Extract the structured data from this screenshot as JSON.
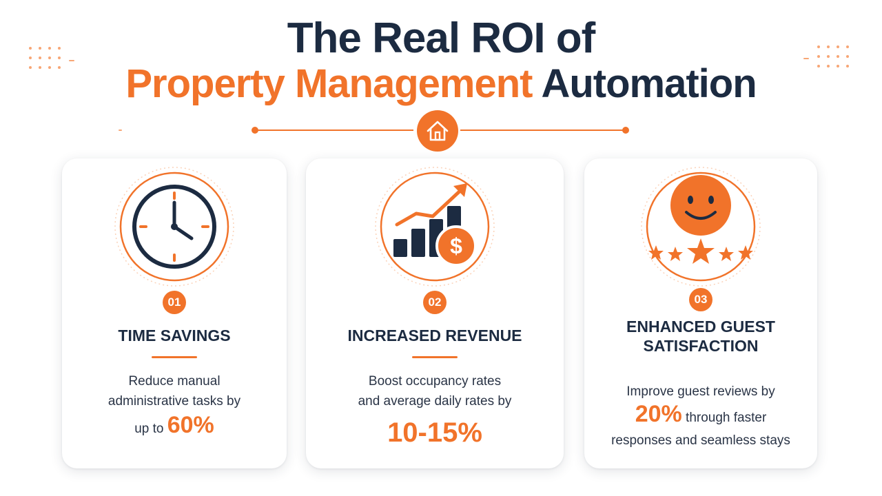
{
  "header": {
    "title_line1": "The Real ROI of",
    "title_line2_accent": "Property Management",
    "title_line2_dark": "Automation"
  },
  "colors": {
    "accent": "#f1732a",
    "dark": "#1c2b41",
    "text": "#2a3446"
  },
  "cards": [
    {
      "icon": "clock-icon",
      "number": "01",
      "title": "TIME SAVINGS",
      "desc_line1": "Reduce manual",
      "desc_line2": "administrative tasks by",
      "desc_prefix": "up to",
      "highlight": "60%"
    },
    {
      "icon": "revenue-chart-icon",
      "number": "02",
      "title": "INCREASED REVENUE",
      "desc_line1": "Boost occupancy rates",
      "desc_line2": "and average daily rates by",
      "highlight": "10-15%"
    },
    {
      "icon": "smiley-stars-icon",
      "number": "03",
      "title_line1": "ENHANCED GUEST",
      "title_line2": "SATISFACTION",
      "desc_line1": "Improve guest reviews by",
      "highlight": "20%",
      "desc_suffix": "through faster",
      "desc_line3": "responses and seamless stays"
    }
  ]
}
